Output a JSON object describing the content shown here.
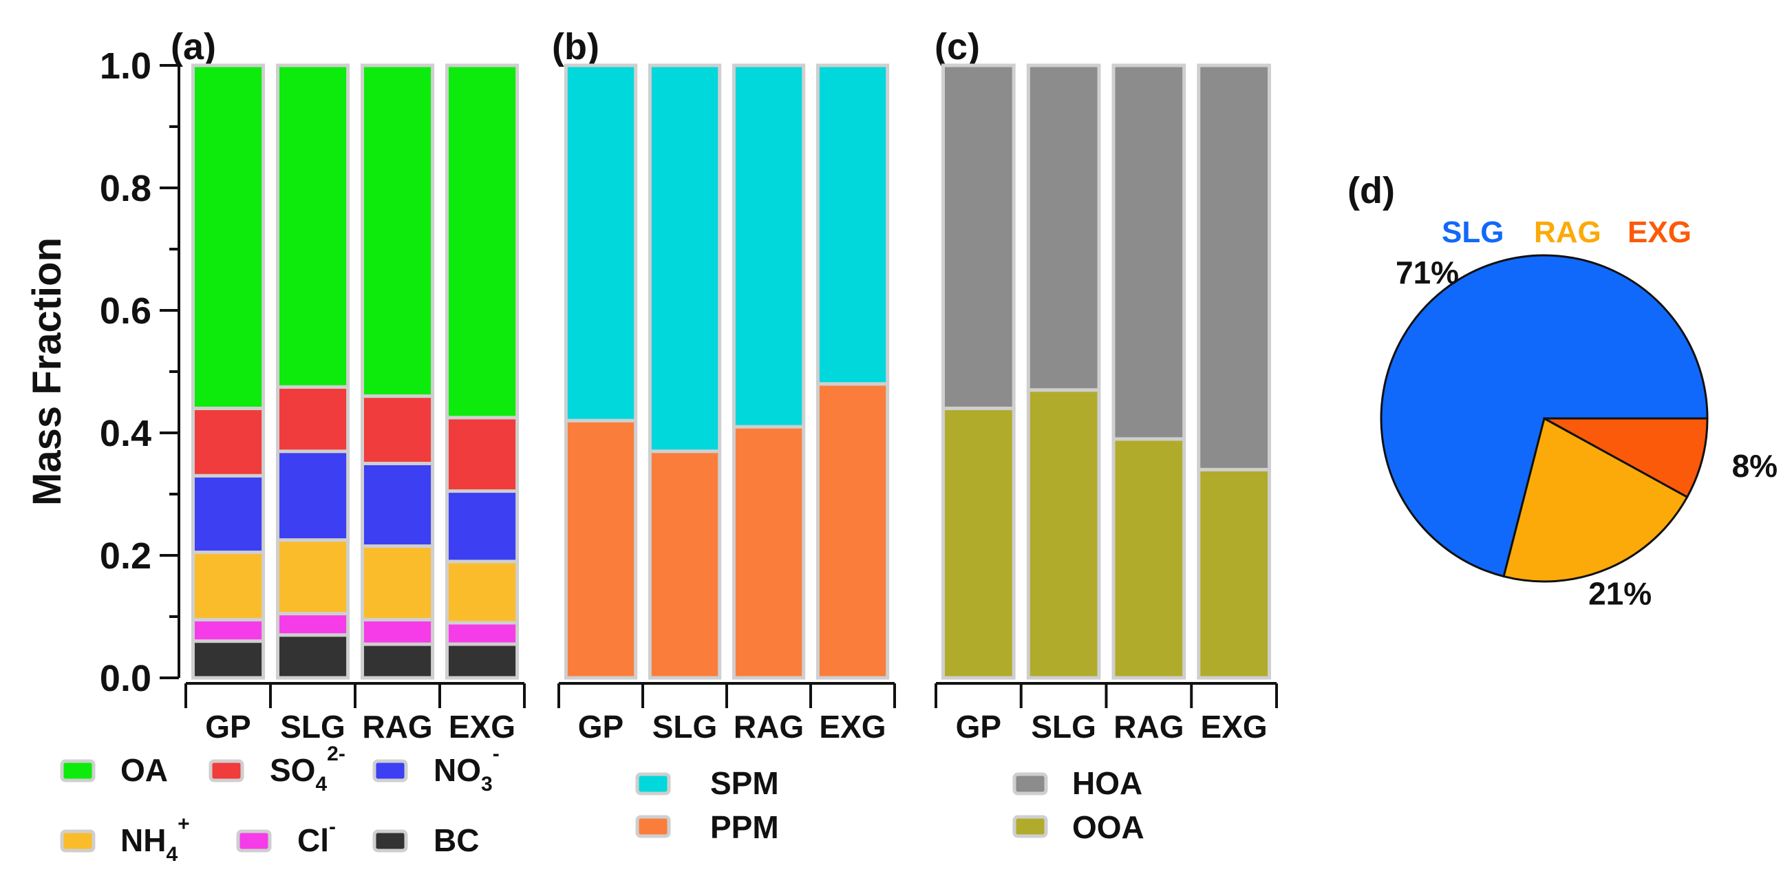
{
  "chart_data": [
    {
      "panel": "(a)",
      "type": "bar",
      "stacked": true,
      "categories": [
        "GP",
        "SLG",
        "RAG",
        "EXG"
      ],
      "ylabel": "Mass Fraction",
      "ylim": [
        0,
        1.0
      ],
      "yticks": [
        "0.0",
        "0.2",
        "0.4",
        "0.6",
        "0.8",
        "1.0"
      ],
      "series": [
        {
          "name": "BC",
          "color": "#333333",
          "values": [
            0.06,
            0.07,
            0.055,
            0.055
          ]
        },
        {
          "name": "Cl",
          "sup": "-",
          "color": "#f53ce8",
          "values": [
            0.035,
            0.035,
            0.04,
            0.035
          ]
        },
        {
          "name": "NH",
          "sub": "4",
          "sup": "+",
          "color": "#fbbc2c",
          "values": [
            0.11,
            0.12,
            0.12,
            0.1
          ]
        },
        {
          "name": "NO",
          "sub": "3",
          "sup": "-",
          "color": "#3c3ff2",
          "values": [
            0.125,
            0.145,
            0.135,
            0.115
          ]
        },
        {
          "name": "SO",
          "sub": "4",
          "sup": "2-",
          "color": "#f03c3c",
          "values": [
            0.11,
            0.105,
            0.11,
            0.12
          ]
        },
        {
          "name": "OA",
          "color": "#0deb0d",
          "values": [
            0.56,
            0.525,
            0.54,
            0.575
          ]
        }
      ]
    },
    {
      "panel": "(b)",
      "type": "bar",
      "stacked": true,
      "categories": [
        "GP",
        "SLG",
        "RAG",
        "EXG"
      ],
      "ylim": [
        0,
        1.0
      ],
      "series": [
        {
          "name": "PPM",
          "color": "#fb7d3c",
          "values": [
            0.42,
            0.37,
            0.41,
            0.48
          ]
        },
        {
          "name": "SPM",
          "color": "#00d8db",
          "values": [
            0.58,
            0.63,
            0.59,
            0.52
          ]
        }
      ]
    },
    {
      "panel": "(c)",
      "type": "bar",
      "stacked": true,
      "categories": [
        "GP",
        "SLG",
        "RAG",
        "EXG"
      ],
      "ylim": [
        0,
        1.0
      ],
      "series": [
        {
          "name": "OOA",
          "color": "#b1ab2c",
          "values": [
            0.44,
            0.47,
            0.39,
            0.34
          ]
        },
        {
          "name": "HOA",
          "color": "#8c8c8c",
          "values": [
            0.56,
            0.53,
            0.61,
            0.66
          ]
        }
      ]
    },
    {
      "panel": "(d)",
      "type": "pie",
      "slices": [
        {
          "name": "SLG",
          "value": 71,
          "label": "71%",
          "color": "#1169fb"
        },
        {
          "name": "RAG",
          "value": 21,
          "label": "21%",
          "color": "#fbaa0a"
        },
        {
          "name": "EXG",
          "value": 8,
          "label": "8%",
          "color": "#fb5a0a"
        }
      ]
    }
  ]
}
